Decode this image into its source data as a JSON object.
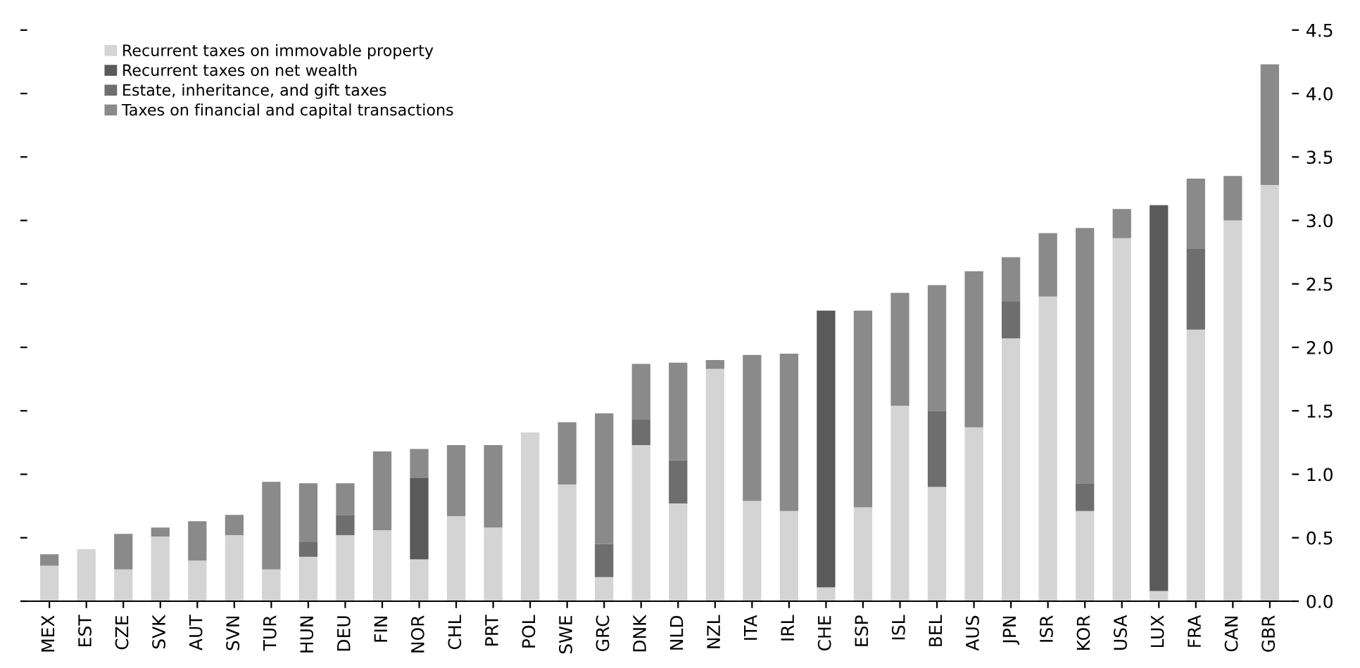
{
  "chart_data": {
    "type": "bar",
    "stacked": true,
    "categories": [
      "MEX",
      "EST",
      "CZE",
      "SVK",
      "AUT",
      "SVN",
      "TUR",
      "HUN",
      "DEU",
      "FIN",
      "NOR",
      "CHL",
      "PRT",
      "POL",
      "SWE",
      "GRC",
      "DNK",
      "NLD",
      "NZL",
      "ITA",
      "IRL",
      "CHE",
      "ESP",
      "ISL",
      "BEL",
      "AUS",
      "JPN",
      "ISR",
      "KOR",
      "USA",
      "LUX",
      "FRA",
      "CAN",
      "GBR"
    ],
    "series": [
      {
        "name": "Recurrent taxes on immovable property",
        "color": "#d4d4d4",
        "values": [
          0.28,
          0.41,
          0.25,
          0.51,
          0.32,
          0.52,
          0.25,
          0.35,
          0.52,
          0.56,
          0.33,
          0.67,
          0.58,
          1.33,
          0.92,
          0.19,
          1.23,
          0.77,
          1.83,
          0.79,
          0.71,
          0.11,
          0.74,
          1.54,
          0.9,
          1.37,
          2.07,
          2.4,
          0.71,
          2.86,
          0.08,
          2.14,
          3.0,
          3.28
        ]
      },
      {
        "name": "Recurrent taxes on net wealth",
        "color": "#5a5a5a",
        "values": [
          null,
          null,
          null,
          null,
          null,
          null,
          null,
          null,
          null,
          null,
          0.64,
          null,
          null,
          null,
          null,
          null,
          null,
          null,
          null,
          null,
          null,
          2.18,
          null,
          null,
          null,
          null,
          null,
          null,
          null,
          null,
          3.04,
          null,
          null,
          null
        ]
      },
      {
        "name": "Estate, inheritance, and gift taxes",
        "color": "#6e6e6e",
        "values": [
          null,
          null,
          null,
          null,
          null,
          null,
          null,
          0.12,
          0.16,
          null,
          null,
          null,
          null,
          null,
          null,
          0.26,
          0.2,
          0.34,
          null,
          null,
          null,
          null,
          null,
          null,
          0.6,
          null,
          0.29,
          null,
          0.22,
          null,
          null,
          0.64,
          null,
          null
        ]
      },
      {
        "name": "Taxes on financial and capital transactions",
        "color": "#8a8a8a",
        "values": [
          0.09,
          null,
          0.28,
          0.07,
          0.31,
          0.16,
          0.69,
          0.46,
          0.25,
          0.62,
          0.23,
          0.56,
          0.65,
          null,
          0.49,
          1.03,
          0.44,
          0.77,
          0.07,
          1.15,
          1.24,
          null,
          1.55,
          0.89,
          0.99,
          1.23,
          0.35,
          0.5,
          2.01,
          0.23,
          null,
          0.55,
          0.35,
          0.95
        ]
      }
    ],
    "ylim": [
      0,
      4.5
    ],
    "yticks": [
      {
        "value": 0,
        "label": "0.0"
      },
      {
        "value": 0.5,
        "label": "0.5"
      },
      {
        "value": 1,
        "label": "1.0"
      },
      {
        "value": 1.5,
        "label": "1.5"
      },
      {
        "value": 2,
        "label": "2.0"
      },
      {
        "value": 2.5,
        "label": "2.5"
      },
      {
        "value": 3,
        "label": "3.0"
      },
      {
        "value": 3.5,
        "label": "3.5"
      },
      {
        "value": 4,
        "label": "4.0"
      },
      {
        "value": 4.5,
        "label": "4.5"
      }
    ],
    "grid": false,
    "legend": "top left"
  }
}
